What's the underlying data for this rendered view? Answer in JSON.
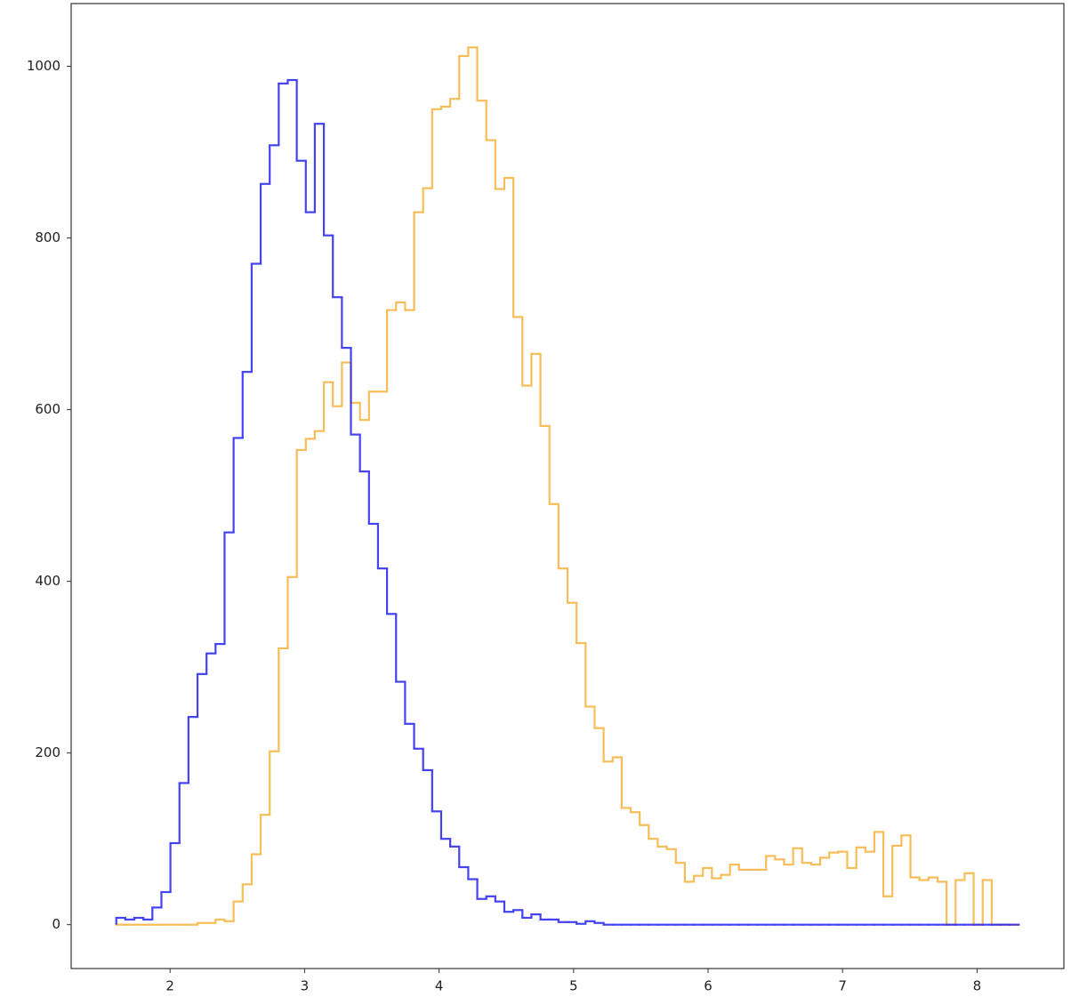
{
  "chart_data": {
    "type": "histogram",
    "bins": [
      1.6,
      1.6671,
      1.7342,
      1.8013,
      1.8684,
      1.9355,
      2.0026,
      2.0697,
      2.1368,
      2.2039,
      2.271,
      2.3381,
      2.4052,
      2.4723,
      2.5394,
      2.6065,
      2.6736,
      2.7407,
      2.8078,
      2.8749,
      2.942,
      3.0091,
      3.0762,
      3.1433,
      3.2104,
      3.2775,
      3.3446,
      3.4117,
      3.4788,
      3.5459,
      3.613,
      3.6801,
      3.7472,
      3.8143,
      3.8814,
      3.9485,
      4.0156,
      4.0827,
      4.1498,
      4.2169,
      4.284,
      4.3511,
      4.4182,
      4.4853,
      4.5524,
      4.6195,
      4.6866,
      4.7537,
      4.8208,
      4.8879,
      4.955,
      5.0221,
      5.0892,
      5.1563,
      5.2234,
      5.2905,
      5.3576,
      5.4247,
      5.4918,
      5.5589,
      5.626,
      5.6931,
      5.7602,
      5.8273,
      5.8944,
      5.9615,
      6.0286,
      6.0957,
      6.1628,
      6.2299,
      6.297,
      6.3641,
      6.4312,
      6.4983,
      6.5654,
      6.6325,
      6.6996,
      6.7667,
      6.8338,
      6.9009,
      6.968,
      7.0351,
      7.1022,
      7.1693,
      7.2364,
      7.3035,
      7.3706,
      7.4377,
      7.5048,
      7.5719,
      7.639,
      7.7061,
      7.7732,
      7.8403,
      7.9074,
      7.9745,
      8.0416,
      8.1087,
      8.1758,
      8.2429,
      8.31
    ],
    "series": [
      {
        "color": "#f7b23b",
        "values": [
          0,
          0,
          0,
          0,
          0,
          0,
          0,
          0,
          0,
          2,
          2,
          6,
          4,
          27,
          47,
          82,
          128,
          202,
          322,
          405,
          553,
          566,
          575,
          632,
          604,
          655,
          608,
          588,
          621,
          621,
          716,
          725,
          716,
          830,
          858,
          950,
          953,
          962,
          1012,
          1022,
          960,
          914,
          857,
          870,
          708,
          628,
          665,
          581,
          490,
          415,
          375,
          328,
          254,
          229,
          190,
          195,
          136,
          131,
          116,
          100,
          91,
          88,
          72,
          50,
          57,
          66,
          54,
          58,
          70,
          64,
          64,
          64,
          80,
          76,
          70,
          89,
          72,
          70,
          78,
          84,
          85,
          66,
          90,
          85,
          108,
          33,
          92,
          104,
          55,
          52,
          55,
          50,
          0,
          52,
          60,
          0,
          52,
          0,
          0,
          0
        ]
      },
      {
        "color": "#2323f2",
        "values": [
          8,
          6,
          8,
          6,
          20,
          38,
          95,
          165,
          242,
          292,
          316,
          327,
          457,
          567,
          644,
          770,
          863,
          908,
          980,
          984,
          890,
          830,
          933,
          803,
          731,
          672,
          571,
          528,
          467,
          415,
          362,
          283,
          234,
          205,
          180,
          132,
          100,
          91,
          67,
          53,
          30,
          33,
          27,
          15,
          17,
          8,
          12,
          6,
          6,
          3,
          3,
          1,
          4,
          2,
          0,
          0,
          0,
          0,
          0,
          0,
          0,
          0,
          0,
          0,
          0,
          0,
          0,
          0,
          0,
          0,
          0,
          0,
          0,
          0,
          0,
          0,
          0,
          0,
          0,
          0,
          0,
          0,
          0,
          0,
          0,
          0,
          0,
          0,
          0,
          0,
          0,
          0,
          0,
          0,
          0,
          0,
          0,
          0,
          0,
          0
        ]
      }
    ],
    "xlim": [
      1.2645,
      8.6455
    ],
    "ylim": [
      -51.1,
      1073.1
    ],
    "xticks": [
      2,
      3,
      4,
      5,
      6,
      7,
      8
    ],
    "yticks": [
      0,
      200,
      400,
      600,
      800,
      1000
    ]
  }
}
